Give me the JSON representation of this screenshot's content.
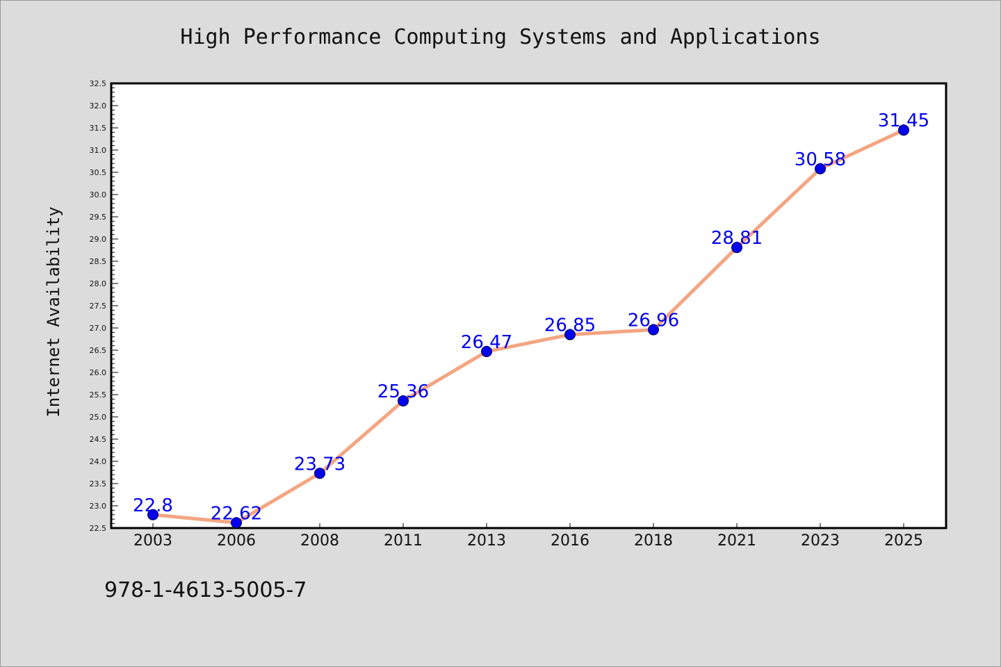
{
  "colors": {
    "background": "#dcdcdc",
    "plot_background": "#ffffff",
    "line": "#f4a582",
    "marker": "#0000ee",
    "label": "#0000ee",
    "axis": "#000000"
  },
  "footer": {
    "isbn": "978-1-4613-5005-7"
  },
  "chart_data": {
    "type": "line",
    "title": "High Performance Computing Systems and Applications",
    "xlabel": "",
    "ylabel": "Internet Availability",
    "categories": [
      "2003",
      "2006",
      "2008",
      "2011",
      "2013",
      "2016",
      "2018",
      "2021",
      "2023",
      "2025"
    ],
    "series": [
      {
        "values": [
          22.8,
          22.62,
          23.73,
          25.36,
          26.47,
          26.85,
          26.96,
          28.81,
          30.58,
          31.45
        ],
        "labels": [
          "22.8",
          "22.62",
          "23.73",
          "25.36",
          "26.47",
          "26.85",
          "26.96",
          "28.81",
          "30.58",
          "31.45"
        ]
      }
    ],
    "ylim": [
      22.5,
      32.5
    ],
    "yticks": [
      "22.5",
      "23.0",
      "23.5",
      "24.0",
      "24.5",
      "25.0",
      "25.5",
      "26.0",
      "26.5",
      "27.0",
      "27.5",
      "28.0",
      "28.5",
      "29.0",
      "29.5",
      "30.0",
      "30.5",
      "31.0",
      "31.5",
      "32.0",
      "32.5"
    ],
    "grid": false,
    "legend": "none"
  }
}
